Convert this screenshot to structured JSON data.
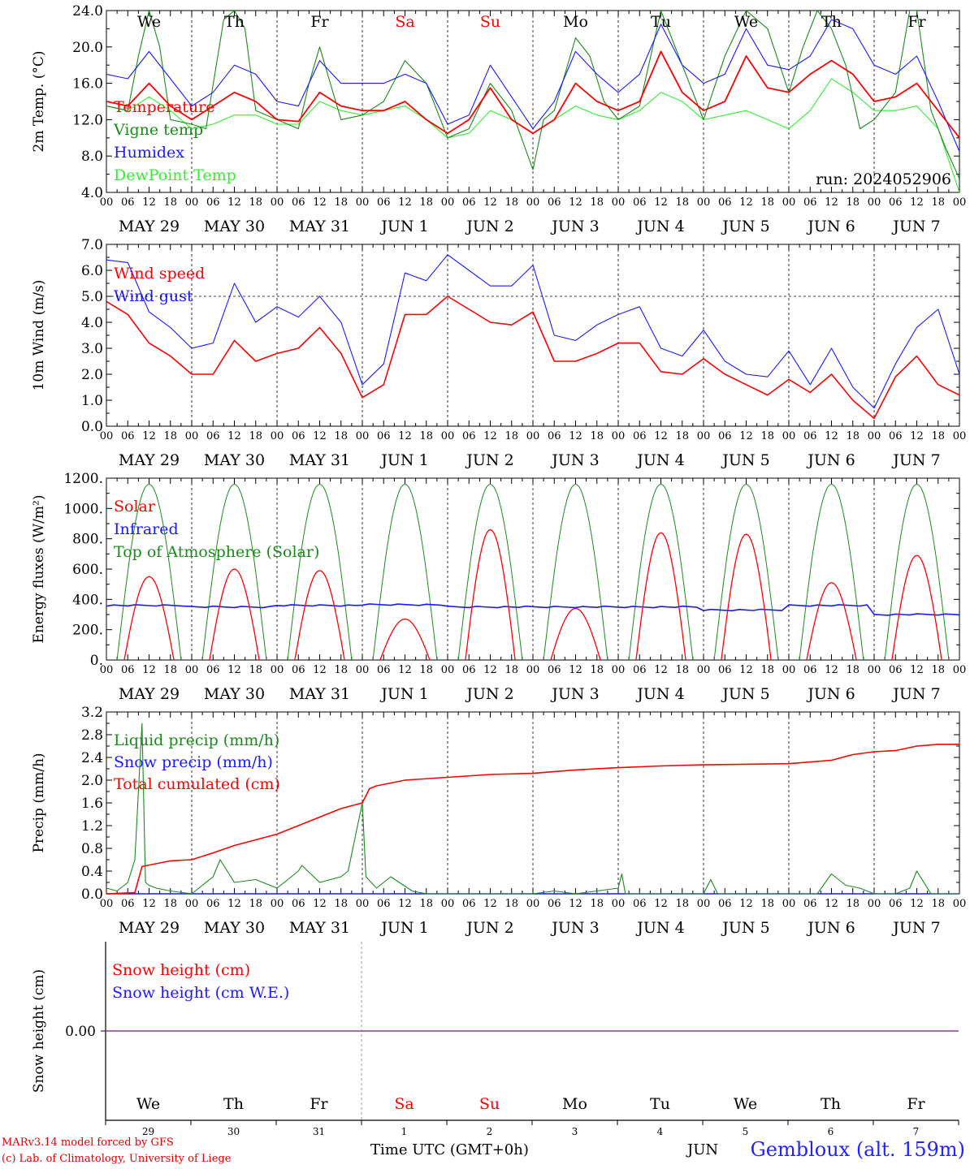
{
  "run_label": "run: 2024052906",
  "footer": {
    "credit_line1": "MARv3.14 model forced by GFS",
    "credit_line2": "(c) Lab. of Climatology, University of Liege",
    "time_axis_label": "Time UTC (GMT+0h)",
    "month_label": "JUN",
    "site": "Gembloux (alt. 159m)"
  },
  "days": {
    "weekday_labels": [
      "We",
      "Th",
      "Fr",
      "Sa",
      "Su",
      "Mo",
      "Tu",
      "We",
      "Th",
      "Fr"
    ],
    "weekend_flags": [
      false,
      false,
      false,
      true,
      true,
      false,
      false,
      false,
      false,
      false
    ],
    "date_labels": [
      "MAY 29",
      "MAY 30",
      "MAY 31",
      "JUN  1",
      "JUN  2",
      "JUN  3",
      "JUN  4",
      "JUN  5",
      "JUN  6",
      "JUN  7"
    ],
    "day_numbers": [
      "29",
      "30",
      "31",
      "1",
      "2",
      "3",
      "4",
      "5",
      "6",
      "7"
    ],
    "hour_ticks": [
      "00",
      "06",
      "12",
      "18"
    ],
    "end_tick": "00"
  },
  "colors": {
    "red": "#ff0000",
    "green": "#1a8a1a",
    "blue": "#1a1aff",
    "lightgreen": "#33ee33",
    "purple": "#8a3a9a",
    "weekend": "#ff0000"
  },
  "chart_data": [
    {
      "type": "line",
      "ylabel": "2m Temp. (°C)",
      "ylim": [
        4,
        24
      ],
      "yticks": [
        "4.0",
        "8.0",
        "12.0",
        "16.0",
        "20.0",
        "24.0"
      ],
      "x_unit": "hours since 2024-05-29 00 UTC",
      "series": [
        {
          "name": "Temperature",
          "color": "red",
          "x": [
            0,
            6,
            12,
            18,
            24,
            30,
            36,
            42,
            48,
            54,
            60,
            66,
            72,
            78,
            84,
            90,
            96,
            102,
            108,
            114,
            120,
            126,
            132,
            138,
            144,
            150,
            156,
            162,
            168,
            174,
            180,
            186,
            192,
            198,
            204,
            210,
            216,
            222,
            228,
            234,
            240
          ],
          "y": [
            14,
            13.5,
            16,
            13.5,
            12,
            13.5,
            15,
            14,
            12,
            11.8,
            15,
            13.5,
            13,
            13,
            14,
            12,
            10.5,
            12,
            15.5,
            12,
            10.5,
            12,
            16,
            14,
            13,
            14,
            19.5,
            15,
            13,
            14,
            19,
            15.5,
            15,
            17,
            18.5,
            17,
            14,
            14.5,
            16,
            13,
            10
          ]
        },
        {
          "name": "Vigne temp",
          "color": "green",
          "x": [
            0,
            6,
            9,
            12,
            15,
            18,
            24,
            28,
            33,
            36,
            39,
            42,
            48,
            54,
            57,
            60,
            63,
            66,
            72,
            78,
            84,
            90,
            96,
            102,
            108,
            114,
            120,
            123,
            126,
            132,
            136,
            140,
            144,
            150,
            156,
            162,
            168,
            174,
            180,
            186,
            192,
            196,
            200,
            204,
            208,
            212,
            216,
            222,
            226,
            228,
            232,
            236,
            240
          ],
          "y": [
            13.5,
            13,
            19,
            24,
            20,
            12,
            11.5,
            11,
            23,
            24,
            22,
            13,
            12,
            11,
            16,
            20,
            16,
            12,
            12.5,
            14,
            18.5,
            16,
            10,
            11,
            16,
            13,
            6.5,
            12,
            13,
            21,
            19,
            14,
            12,
            13.5,
            24,
            18,
            12,
            19,
            24,
            22,
            15,
            20,
            24,
            22,
            18,
            11,
            12,
            15,
            24,
            24,
            13,
            9,
            5.5
          ]
        },
        {
          "name": "Humidex",
          "color": "blue",
          "x": [
            0,
            6,
            12,
            18,
            24,
            30,
            36,
            42,
            48,
            54,
            60,
            66,
            72,
            78,
            84,
            90,
            96,
            102,
            108,
            114,
            120,
            126,
            132,
            138,
            144,
            150,
            156,
            162,
            168,
            174,
            180,
            186,
            192,
            198,
            204,
            210,
            216,
            222,
            228,
            234,
            240
          ],
          "y": [
            17,
            16.5,
            19.5,
            16.5,
            13.5,
            15,
            18,
            17,
            14,
            13.5,
            18.5,
            16,
            16,
            16,
            17,
            16,
            11.5,
            12.5,
            18,
            14.5,
            11,
            14,
            19.5,
            17,
            15,
            17,
            22.5,
            18,
            16,
            17,
            22,
            18,
            17.5,
            19,
            23,
            22,
            18,
            17,
            19,
            14,
            8.5
          ]
        },
        {
          "name": "DewPoint Temp",
          "color": "lightgreen",
          "x": [
            0,
            6,
            12,
            18,
            24,
            30,
            36,
            42,
            48,
            54,
            60,
            66,
            72,
            78,
            84,
            90,
            96,
            102,
            108,
            114,
            120,
            126,
            132,
            138,
            144,
            150,
            156,
            162,
            168,
            174,
            180,
            186,
            192,
            198,
            204,
            210,
            216,
            222,
            228,
            234,
            240
          ],
          "y": [
            13.5,
            13,
            14.5,
            13,
            11,
            11.5,
            12.5,
            12.5,
            11.5,
            11.5,
            14,
            13,
            12.5,
            13,
            13.5,
            12,
            10,
            10.5,
            13,
            12,
            10.5,
            12,
            13.5,
            12.5,
            12,
            13,
            15,
            14,
            12,
            12.5,
            13,
            12,
            11,
            13,
            16.5,
            15,
            13,
            13,
            13.5,
            11,
            4
          ]
        }
      ]
    },
    {
      "type": "line",
      "ylabel": "10m Wind (m/s)",
      "ylim": [
        0,
        7
      ],
      "yticks": [
        "0.0",
        "1.0",
        "2.0",
        "3.0",
        "4.0",
        "5.0",
        "6.0",
        "7.0"
      ],
      "reference_line": 5.0,
      "x_unit": "hours since 2024-05-29 00 UTC",
      "series": [
        {
          "name": "Wind speed",
          "color": "red",
          "x": [
            0,
            6,
            12,
            18,
            24,
            30,
            36,
            42,
            48,
            54,
            60,
            66,
            72,
            78,
            84,
            90,
            96,
            102,
            108,
            114,
            120,
            126,
            132,
            138,
            144,
            150,
            156,
            162,
            168,
            174,
            180,
            186,
            192,
            198,
            204,
            210,
            216,
            222,
            228,
            234,
            240
          ],
          "y": [
            4.8,
            4.3,
            3.2,
            2.7,
            2.0,
            2.0,
            3.3,
            2.5,
            2.8,
            3.0,
            3.8,
            2.8,
            1.1,
            1.6,
            4.3,
            4.3,
            5.0,
            4.5,
            4.0,
            3.9,
            4.4,
            2.5,
            2.5,
            2.8,
            3.2,
            3.2,
            2.1,
            2.0,
            2.6,
            2.0,
            1.6,
            1.2,
            1.8,
            1.3,
            2.0,
            1.0,
            0.3,
            1.9,
            2.7,
            1.6,
            1.2
          ]
        },
        {
          "name": "Wind gust",
          "color": "blue",
          "x": [
            0,
            6,
            12,
            18,
            24,
            30,
            36,
            42,
            48,
            54,
            60,
            66,
            72,
            78,
            84,
            90,
            96,
            102,
            108,
            114,
            120,
            126,
            132,
            138,
            144,
            150,
            156,
            162,
            168,
            174,
            180,
            186,
            192,
            198,
            204,
            210,
            216,
            222,
            228,
            234,
            240
          ],
          "y": [
            6.4,
            6.3,
            4.4,
            3.8,
            3.0,
            3.2,
            5.5,
            4.0,
            4.6,
            4.2,
            5.0,
            4.0,
            1.6,
            2.4,
            5.9,
            5.6,
            6.6,
            6.0,
            5.4,
            5.4,
            6.2,
            3.5,
            3.3,
            3.9,
            4.3,
            4.6,
            3.0,
            2.7,
            3.7,
            2.5,
            2.0,
            1.9,
            2.9,
            1.6,
            3.0,
            1.5,
            0.7,
            2.4,
            3.8,
            4.5,
            2.0
          ]
        }
      ]
    },
    {
      "type": "line",
      "ylabel": "Energy fluxes (W/m²)",
      "ylim": [
        0,
        1200
      ],
      "yticks": [
        "0.",
        "200.",
        "400.",
        "600.",
        "800.",
        "1000.",
        "1200."
      ],
      "x_unit": "hours since 2024-05-29 00 UTC",
      "daily_peak_hour": 12,
      "daily_toa_halfwidth_hours": 9,
      "series": [
        {
          "name": "Solar",
          "color": "red",
          "daily_peaks": [
            550,
            600,
            590,
            270,
            860,
            340,
            840,
            830,
            510,
            690
          ]
        },
        {
          "name": "Infrared",
          "color": "blue",
          "values_per_day": [
            360,
            350,
            360,
            365,
            350,
            350,
            350,
            330,
            360,
            300
          ]
        },
        {
          "name": "Top of Atmosphere (Solar)",
          "color": "green",
          "daily_peaks": [
            1160,
            1160,
            1160,
            1160,
            1160,
            1160,
            1160,
            1160,
            1160,
            1160
          ]
        }
      ]
    },
    {
      "type": "line",
      "ylabel": "Precip (mm/h)",
      "ylim": [
        0,
        3.2
      ],
      "yticks": [
        "0.0",
        "0.4",
        "0.8",
        "1.2",
        "1.6",
        "2.0",
        "2.4",
        "2.8",
        "3.2"
      ],
      "x_unit": "hours since 2024-05-29 00 UTC",
      "series": [
        {
          "name": "Liquid precip (mm/h)",
          "color": "green",
          "x": [
            0,
            3,
            6,
            8,
            10,
            11,
            12,
            14,
            18,
            24,
            30,
            32,
            36,
            42,
            48,
            54,
            55,
            60,
            66,
            68,
            72,
            73,
            76,
            80,
            86,
            90,
            96,
            102,
            108,
            114,
            120,
            126,
            132,
            138,
            144,
            145,
            146,
            150,
            156,
            162,
            168,
            170,
            172,
            180,
            186,
            192,
            196,
            198,
            200,
            204,
            208,
            212,
            216,
            222,
            226,
            228,
            232,
            240
          ],
          "y": [
            0.1,
            0.05,
            0.2,
            0.6,
            3.0,
            0.2,
            0.15,
            0.1,
            0.05,
            0.0,
            0.3,
            0.6,
            0.2,
            0.25,
            0.1,
            0.4,
            0.5,
            0.2,
            0.3,
            0.4,
            1.6,
            0.3,
            0.1,
            0.3,
            0.05,
            0.0,
            0.0,
            0.0,
            0.0,
            0.0,
            0.0,
            0.05,
            0.0,
            0.05,
            0.1,
            0.35,
            0.0,
            0.0,
            0.0,
            0.0,
            0.0,
            0.25,
            0.0,
            0.0,
            0.0,
            0.0,
            0.0,
            0.0,
            0.0,
            0.35,
            0.15,
            0.1,
            0.0,
            0.0,
            0.1,
            0.4,
            0.0,
            0.0
          ]
        },
        {
          "name": "Snow precip (mm/h)",
          "color": "blue",
          "x": [
            0,
            240
          ],
          "y": [
            0,
            0
          ]
        },
        {
          "name": "Total cumulated (cm)",
          "color": "red",
          "x": [
            0,
            8,
            10,
            18,
            24,
            30,
            36,
            42,
            48,
            54,
            60,
            66,
            72,
            74,
            76,
            84,
            96,
            108,
            120,
            132,
            144,
            156,
            168,
            180,
            192,
            204,
            210,
            216,
            222,
            228,
            234,
            240
          ],
          "y": [
            0,
            0.02,
            0.48,
            0.58,
            0.6,
            0.72,
            0.85,
            0.95,
            1.05,
            1.2,
            1.35,
            1.5,
            1.6,
            1.85,
            1.9,
            2.0,
            2.05,
            2.1,
            2.12,
            2.18,
            2.22,
            2.25,
            2.27,
            2.28,
            2.29,
            2.35,
            2.45,
            2.5,
            2.52,
            2.6,
            2.63,
            2.63
          ]
        }
      ]
    },
    {
      "type": "line",
      "ylabel": "Snow height (cm)",
      "ylim": [
        -1,
        1
      ],
      "yticks": [
        "0.00"
      ],
      "x_unit": "hours since 2024-05-29 00 UTC",
      "series": [
        {
          "name": "Snow height (cm)",
          "color": "red",
          "x": [
            0,
            240
          ],
          "y": [
            0,
            0
          ]
        },
        {
          "name": "Snow height (cm W.E.)",
          "color": "blue",
          "x": [
            0,
            240
          ],
          "y": [
            0,
            0
          ]
        }
      ]
    }
  ]
}
